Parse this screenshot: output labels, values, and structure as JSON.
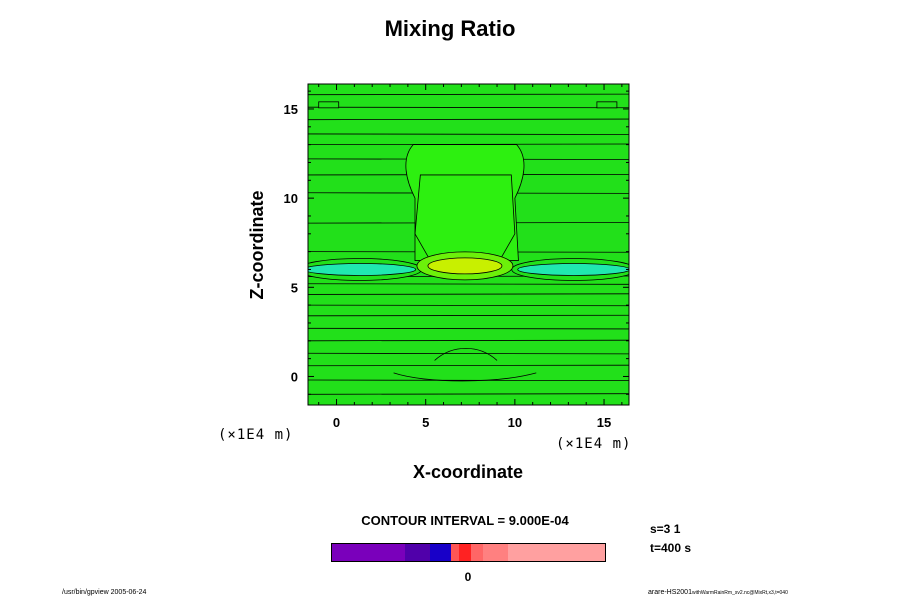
{
  "chart_data": {
    "type": "contour",
    "title": "Mixing Ratio",
    "xlabel": "X-coordinate",
    "ylabel": "Z-coordinate",
    "x_unit": "(×1E4 m)",
    "z_unit": "(×1E4 m)",
    "xlim": [
      -1.6,
      16.4
    ],
    "zlim": [
      -1.6,
      16.4
    ],
    "x_ticks": [
      0,
      5,
      10,
      15
    ],
    "z_ticks": [
      0,
      5,
      10,
      15
    ],
    "x_tick_labels": [
      "0",
      "5",
      "10",
      "15"
    ],
    "z_tick_labels": [
      "0",
      "5",
      "10",
      "15"
    ],
    "features": [
      {
        "kind": "maximum",
        "center": [
          7.2,
          6.2
        ],
        "description": "yellow-green core of high mixing ratio"
      },
      {
        "kind": "minimum",
        "center": [
          1.3,
          6.0
        ],
        "description": "cyan low region, left"
      },
      {
        "kind": "minimum",
        "center": [
          13.3,
          6.0
        ],
        "description": "cyan low region, right"
      },
      {
        "kind": "plume",
        "x_range": [
          3.7,
          10.7
        ],
        "z_range": [
          6.2,
          13.0
        ]
      }
    ],
    "horizontal_contour_levels_z": [
      -1.0,
      -0.2,
      0.6,
      1.3,
      2.0,
      2.7,
      3.4,
      4.0,
      4.6,
      5.2,
      5.6,
      7.0,
      8.6,
      10.3,
      11.3,
      12.2,
      13.0,
      13.6,
      14.4,
      15.1,
      15.8
    ],
    "contour_interval": "CONTOUR INTERVAL = 9.000E-04",
    "colorbar": {
      "zero_label": "0",
      "segments": [
        {
          "color": "#7a00bb",
          "weight": 30
        },
        {
          "color": "#5000aa",
          "weight": 10
        },
        {
          "color": "#1800c8",
          "weight": 9
        },
        {
          "color": "#ff5555",
          "weight": 3
        },
        {
          "color": "#ff2222",
          "weight": 5
        },
        {
          "color": "#ff6666",
          "weight": 5
        },
        {
          "color": "#ff8080",
          "weight": 10
        },
        {
          "color": "#ffa0a0",
          "weight": 40
        }
      ]
    }
  },
  "annotations": {
    "s_label": "s=3 1",
    "t_label": "t=400 s"
  },
  "footer": {
    "left": "/usr/bin/gpview 2005-06-24",
    "right_main": "arare-HS2001",
    "right_sub": "withWarmRainRm_sv2.nc@MixRt,x3,t=040"
  },
  "colors": {
    "field_base": "#22e01a",
    "field_plume": "#2df010",
    "core_outer": "#6cf00a",
    "core_inner": "#c8f000",
    "cyan_low": "#20e8b0"
  }
}
